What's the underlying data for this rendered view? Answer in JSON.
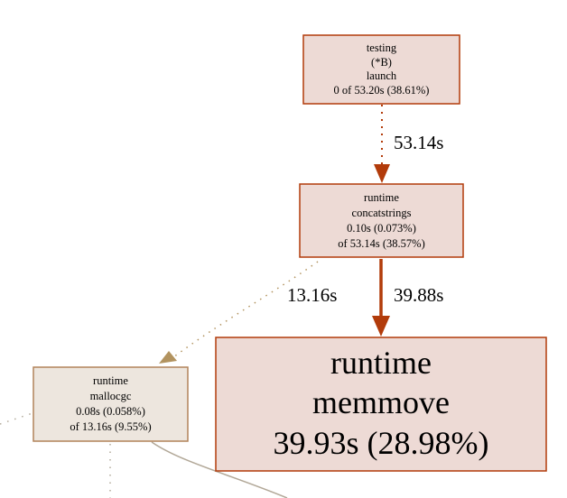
{
  "nodes": {
    "testing_launch": {
      "lines": [
        "testing",
        "(*B)",
        "launch",
        "0 of 53.20s (38.61%)"
      ],
      "fill": "#eddad5",
      "stroke": "#b23b0a"
    },
    "runtime_concatstrings": {
      "lines": [
        "runtime",
        "concatstrings",
        "0.10s (0.073%)",
        "of 53.14s (38.57%)"
      ],
      "fill": "#eddad5",
      "stroke": "#b23b0a"
    },
    "runtime_memmove": {
      "lines": [
        "runtime",
        "memmove",
        "39.93s (28.98%)"
      ],
      "fill": "#eddad5",
      "stroke": "#b23b0a"
    },
    "runtime_mallocgc": {
      "lines": [
        "runtime",
        "mallocgc",
        "0.08s (0.058%)",
        "of 13.16s (9.55%)"
      ],
      "fill": "#ede6de",
      "stroke": "#b2835a"
    }
  },
  "edges": {
    "launch_to_concatstrings": {
      "label": "53.14s",
      "color": "#b23b0a",
      "style": "dotted"
    },
    "concatstrings_to_memmove": {
      "label": "39.88s",
      "color": "#b23b0a",
      "style": "solid"
    },
    "concatstrings_to_mallocgc": {
      "label": "13.16s",
      "color": "#b2935f",
      "style": "dotted"
    },
    "mallocgc_out_right": {
      "label": "",
      "color": "#b2a898",
      "style": "solid"
    },
    "mallocgc_out_down": {
      "label": "",
      "color": "#b2aa9a",
      "style": "dotted"
    },
    "in_to_mallocgc_left": {
      "label": "",
      "color": "#b2aa9a",
      "style": "dotted"
    }
  }
}
